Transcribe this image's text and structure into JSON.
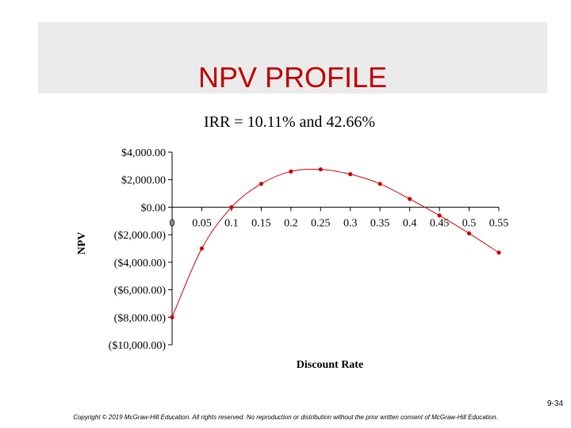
{
  "slide": {
    "title": "NPV PROFILE",
    "page_number": "9-34",
    "copyright": "Copyright © 2019 McGraw-Hill Education. All rights reserved. No reproduction or distribution without the prior written consent of McGraw-Hill Education."
  },
  "colors": {
    "title": "#c00000",
    "series": "#cc0000",
    "band": "#ebebeb"
  },
  "chart_data": {
    "type": "scatter",
    "title": "IRR = 10.11% and 42.66%",
    "xlabel": "Discount Rate",
    "ylabel": "NPV",
    "x_ticks": [
      "0",
      "0.05",
      "0.1",
      "0.15",
      "0.2",
      "0.25",
      "0.3",
      "0.35",
      "0.4",
      "0.45",
      "0.5",
      "0.55"
    ],
    "y_ticks": [
      "$4,000.00",
      "$2,000.00",
      "$0.00",
      "($2,000.00)",
      "($4,000.00)",
      "($6,000.00)",
      "($8,000.00)",
      "($10,000.00)"
    ],
    "y_tick_values": [
      4000,
      2000,
      0,
      -2000,
      -4000,
      -6000,
      -8000,
      -10000
    ],
    "ylim": [
      -10000,
      4000
    ],
    "xlim": [
      0,
      0.55
    ],
    "grid": false,
    "legend": "none",
    "series": [
      {
        "x": [
          0,
          0.05,
          0.1,
          0.15,
          0.2,
          0.25,
          0.3,
          0.35,
          0.4,
          0.45,
          0.5,
          0.55
        ],
        "y": [
          -8000,
          -3000,
          0,
          1700,
          2600,
          2750,
          2400,
          1700,
          600,
          -600,
          -1900,
          -3300
        ]
      }
    ]
  }
}
